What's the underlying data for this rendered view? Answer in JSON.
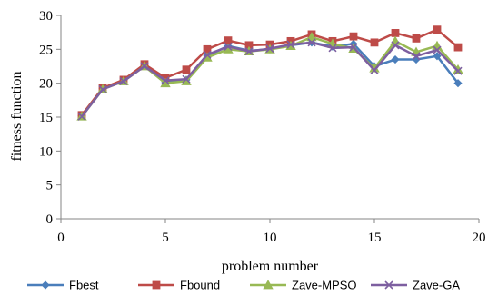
{
  "chart_data": {
    "type": "line",
    "title": "",
    "xlabel": "problem number",
    "ylabel": "fitness function",
    "xlim": [
      0,
      20
    ],
    "ylim": [
      0,
      30
    ],
    "x_ticks": [
      0,
      5,
      10,
      15,
      20
    ],
    "y_ticks": [
      0,
      5,
      10,
      15,
      20,
      25,
      30
    ],
    "grid": false,
    "legend_position": "bottom",
    "x": [
      1,
      2,
      3,
      4,
      5,
      6,
      7,
      8,
      9,
      10,
      11,
      12,
      13,
      14,
      15,
      16,
      17,
      18,
      19
    ],
    "series": [
      {
        "name": "Fbest",
        "color": "#4a7ebb",
        "marker": "diamond",
        "values": [
          15.2,
          19.2,
          20.4,
          22.6,
          20.1,
          20.5,
          24.0,
          25.5,
          24.8,
          25.0,
          25.6,
          26.0,
          25.4,
          25.8,
          22.5,
          23.5,
          23.5,
          24.0,
          20.0
        ]
      },
      {
        "name": "Fbound",
        "color": "#be4b48",
        "marker": "square",
        "values": [
          15.3,
          19.3,
          20.5,
          22.8,
          20.8,
          22.0,
          25.0,
          26.3,
          25.6,
          25.7,
          26.2,
          27.2,
          26.2,
          26.9,
          26.0,
          27.4,
          26.6,
          27.9,
          25.3
        ]
      },
      {
        "name": "Zave-MPSO",
        "color": "#98b954",
        "marker": "triangle",
        "values": [
          15.1,
          19.1,
          20.3,
          22.5,
          20.0,
          20.3,
          23.8,
          25.0,
          24.7,
          25.0,
          25.5,
          26.8,
          25.8,
          25.1,
          22.2,
          26.2,
          24.6,
          25.5,
          22.0
        ]
      },
      {
        "name": "Zave-GA",
        "color": "#7d5fa0",
        "marker": "x",
        "values": [
          15.1,
          19.1,
          20.3,
          22.5,
          20.4,
          20.6,
          24.2,
          25.4,
          24.7,
          25.1,
          25.7,
          26.0,
          25.2,
          25.3,
          21.9,
          25.6,
          24.0,
          24.9,
          21.8
        ]
      }
    ]
  }
}
